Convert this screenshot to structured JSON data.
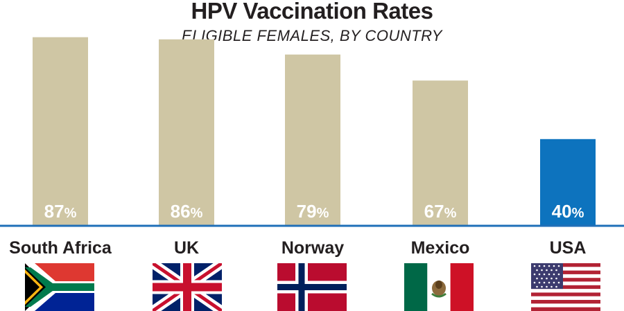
{
  "colors": {
    "default_bar": "#cfc6a4",
    "highlight_bar": "#0d73be",
    "baseline": "#1f6fb8",
    "text": "#231f20",
    "bar_text": "#ffffff"
  },
  "chart_data": {
    "type": "bar",
    "title": "HPV Vaccination Rates",
    "subtitle": "ELIGIBLE FEMALES, BY COUNTRY",
    "categories": [
      "South Africa",
      "UK",
      "Norway",
      "Mexico",
      "USA"
    ],
    "values": [
      87,
      86,
      79,
      67,
      40
    ],
    "value_labels": [
      "87%",
      "86%",
      "79%",
      "67%",
      "40%"
    ],
    "highlight_index": 4,
    "xlabel": "",
    "ylabel": "",
    "ylim": [
      0,
      100
    ],
    "grid": false,
    "legend": "none"
  },
  "flags": [
    {
      "country": "South Africa",
      "icon": "south-africa-flag-icon"
    },
    {
      "country": "UK",
      "icon": "uk-flag-icon"
    },
    {
      "country": "Norway",
      "icon": "norway-flag-icon"
    },
    {
      "country": "Mexico",
      "icon": "mexico-flag-icon"
    },
    {
      "country": "USA",
      "icon": "usa-flag-icon"
    }
  ]
}
